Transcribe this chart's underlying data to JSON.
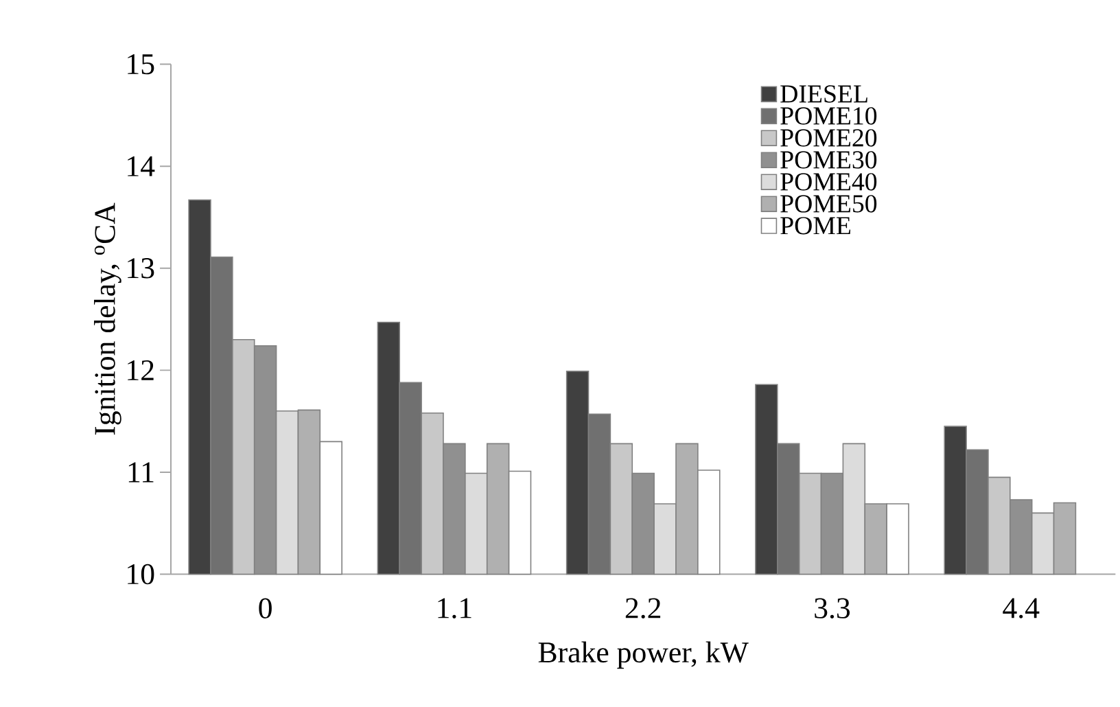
{
  "chart_data": {
    "type": "bar",
    "xlabel": "Brake power, kW",
    "ylabel": "Ignition delay,  $^{o}$CA",
    "categories": [
      "0",
      "1.1",
      "2.2",
      "3.3",
      "4.4"
    ],
    "series": [
      {
        "name": "DIESEL",
        "color": "#404040",
        "values": [
          13.67,
          12.47,
          11.99,
          11.86,
          11.45
        ]
      },
      {
        "name": "POME10",
        "color": "#707070",
        "values": [
          13.11,
          11.88,
          11.57,
          11.28,
          11.22
        ]
      },
      {
        "name": "POME20",
        "color": "#c8c8c8",
        "values": [
          12.3,
          11.58,
          11.28,
          10.99,
          10.95
        ]
      },
      {
        "name": "POME30",
        "color": "#909090",
        "values": [
          12.24,
          11.28,
          10.99,
          10.99,
          10.73
        ]
      },
      {
        "name": "POME40",
        "color": "#dcdcdc",
        "values": [
          11.6,
          10.99,
          10.69,
          11.28,
          10.6
        ]
      },
      {
        "name": "POME50",
        "color": "#b0b0b0",
        "values": [
          11.61,
          11.28,
          11.28,
          10.69,
          10.7
        ]
      },
      {
        "name": "POME",
        "color": "#ffffff",
        "values": [
          11.3,
          11.01,
          11.02,
          10.69,
          null
        ]
      }
    ],
    "ylim": [
      10,
      15
    ],
    "yticks": [
      10,
      11,
      12,
      13,
      14,
      15
    ],
    "legend": "top right",
    "grid": false
  }
}
